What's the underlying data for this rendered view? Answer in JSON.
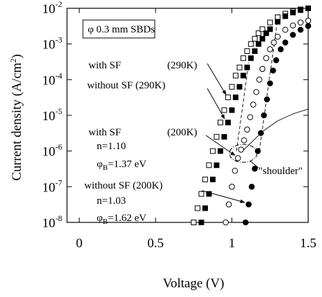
{
  "chart_data": {
    "type": "scatter",
    "x_label": "Voltage (V)",
    "y_label": {
      "text": "Current density (A/cm",
      "sup": "2",
      "tail": ")"
    },
    "xlim": [
      -0.08,
      1.5
    ],
    "xticks": [
      0,
      0.5,
      1,
      1.5
    ],
    "ylim": [
      1e-08,
      0.01
    ],
    "ylog": true,
    "yticks": [
      {
        "value": 1e-08,
        "label": "10",
        "exponent": "-8"
      },
      {
        "value": 1e-07,
        "label": "10",
        "exponent": "-7"
      },
      {
        "value": 1e-06,
        "label": "10",
        "exponent": "-6"
      },
      {
        "value": 1e-05,
        "label": "10",
        "exponent": "-5"
      },
      {
        "value": 0.0001,
        "label": "10",
        "exponent": "-4"
      },
      {
        "value": 0.001,
        "label": "10",
        "exponent": "-3"
      },
      {
        "value": 0.01,
        "label": "10",
        "exponent": "-2"
      }
    ],
    "series": [
      {
        "marker": "square",
        "filled": false,
        "color": "#000000",
        "x": [
          0.75,
          0.775,
          0.8,
          0.825,
          0.85,
          0.875,
          0.9,
          0.925,
          0.95,
          0.975,
          1.0,
          1.025,
          1.05,
          1.075,
          1.1,
          1.125,
          1.15,
          1.175,
          1.2,
          1.25,
          1.3,
          1.35,
          1.4,
          1.45,
          1.5
        ],
        "values": [
          1e-08,
          2.5e-08,
          6.3e-08,
          1.6e-07,
          4e-07,
          1e-06,
          2.5e-06,
          6.3e-06,
          1.4e-05,
          3.2e-05,
          6.3e-05,
          0.00013,
          0.00022,
          0.0004,
          0.00063,
          0.001,
          0.0014,
          0.002,
          0.0026,
          0.004,
          0.0056,
          0.0071,
          0.0083,
          0.0093,
          0.01
        ]
      },
      {
        "marker": "square",
        "filled": true,
        "color": "#000000",
        "x": [
          0.8,
          0.825,
          0.85,
          0.875,
          0.9,
          0.925,
          0.95,
          0.975,
          1.0,
          1.025,
          1.05,
          1.075,
          1.1,
          1.125,
          1.15,
          1.175,
          1.2,
          1.225,
          1.25,
          1.3,
          1.35,
          1.4,
          1.45,
          1.5
        ],
        "values": [
          1e-08,
          2.5e-08,
          6.3e-08,
          1.6e-07,
          4e-07,
          1e-06,
          2.5e-06,
          6.3e-06,
          1.4e-05,
          3.2e-05,
          6.3e-05,
          0.00013,
          0.00022,
          0.0004,
          0.00063,
          0.001,
          0.0014,
          0.002,
          0.0026,
          0.0042,
          0.006,
          0.0076,
          0.0089,
          0.01
        ]
      },
      {
        "marker": "circle",
        "filled": false,
        "color": "#000000",
        "x": [
          0.96,
          0.98,
          1.0,
          1.02,
          1.04,
          1.06,
          1.08,
          1.1,
          1.12,
          1.14,
          1.16,
          1.18,
          1.2,
          1.225,
          1.25,
          1.275,
          1.3,
          1.35,
          1.4,
          1.45,
          1.5
        ],
        "values": [
          1e-08,
          3.2e-08,
          1e-07,
          2.8e-07,
          6.3e-07,
          1.1e-06,
          2e-06,
          4e-06,
          8.9e-06,
          2e-05,
          4.5e-05,
          0.0001,
          0.0002,
          0.0004,
          0.00071,
          0.0011,
          0.0016,
          0.0025,
          0.0033,
          0.004,
          0.0045
        ]
      },
      {
        "marker": "circle",
        "filled": true,
        "color": "#000000",
        "x": [
          1.09,
          1.11,
          1.13,
          1.15,
          1.17,
          1.19,
          1.21,
          1.23,
          1.25,
          1.27,
          1.29,
          1.32,
          1.35,
          1.4,
          1.45,
          1.5
        ],
        "values": [
          1e-08,
          3.2e-08,
          1e-07,
          3.2e-07,
          1e-06,
          3.2e-06,
          1e-05,
          2.8e-05,
          7.9e-05,
          0.00018,
          0.00035,
          0.00071,
          0.0011,
          0.0018,
          0.0025,
          0.0032
        ]
      }
    ],
    "lines": [
      {
        "style": "dashed",
        "x": [
          1.03,
          1.11
        ],
        "values": [
          1e-06,
          0.0003
        ]
      },
      {
        "style": "dashed",
        "x": [
          1.18,
          1.3
        ],
        "values": [
          1e-06,
          0.005
        ]
      },
      {
        "style": "solid",
        "x": [
          1.08,
          1.2,
          1.3,
          1.4,
          1.5
        ],
        "values": [
          1.1e-06,
          3.5e-06,
          7e-06,
          1.1e-05,
          1.5e-05
        ]
      }
    ],
    "annotations": [
      {
        "text": "φ 0.3 mm SBDs"
      },
      {
        "text": "with SF"
      },
      {
        "text": "(290K)"
      },
      {
        "text": "without SF (290K)"
      },
      {
        "text": "with SF"
      },
      {
        "text": "(200K)"
      },
      {
        "text": "n=1.10"
      },
      {
        "text": "φ",
        "sub": "B",
        "post": "=1.37 eV"
      },
      {
        "text": "without SF (200K)"
      },
      {
        "text": "n=1.03"
      },
      {
        "text": "φ",
        "sub": "B",
        "post": "=1.62 eV"
      },
      {
        "text": "\"shoulder\""
      }
    ]
  }
}
